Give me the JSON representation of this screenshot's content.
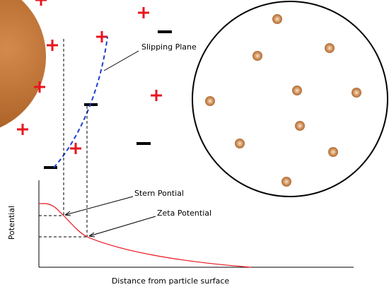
{
  "labels": {
    "slipping_plane": "Slipping Plane",
    "stern": "Stern Pontial",
    "zeta": "Zeta Potential"
  },
  "axes": {
    "y_label": "Potential",
    "x_label": "Distance from particle surface"
  }
}
